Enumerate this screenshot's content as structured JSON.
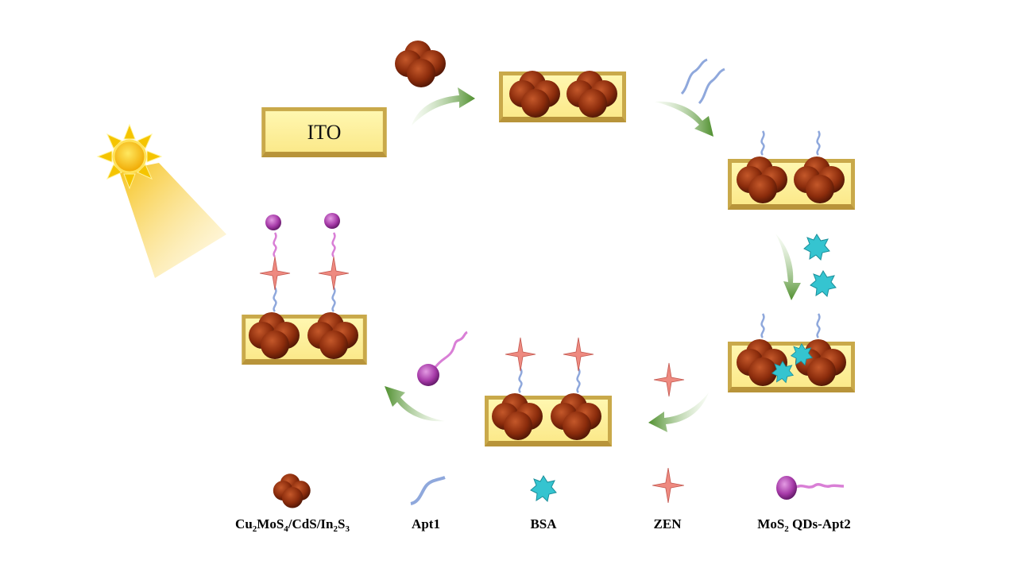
{
  "electrode_label": "ITO",
  "colors": {
    "electrode": "#fdf49a",
    "electrode_edge": "#c9a94a",
    "cluster": "#8b2c0c",
    "apt1": "#8fa8dc",
    "bsa": "#35c4d0",
    "zen": "#ee8a80",
    "mos2": "#a63aa8",
    "apt2": "#d97fd6",
    "arrow": "#5c9a3a",
    "sun": "#f5c400"
  },
  "icons": [
    "sun-icon",
    "light-beam",
    "cluster-icon",
    "apt1-strand-icon",
    "bsa-star-icon",
    "zen-star-icon",
    "mos2-qd-icon",
    "arrow-icon"
  ],
  "legend": [
    {
      "name": "cluster",
      "parts": [
        "Cu",
        "2",
        "MoS",
        "4",
        "/CdS/In",
        "2",
        "S",
        "3"
      ]
    },
    {
      "name": "apt1",
      "parts": [
        "Apt1"
      ]
    },
    {
      "name": "bsa",
      "parts": [
        "BSA"
      ]
    },
    {
      "name": "zen",
      "parts": [
        "ZEN"
      ]
    },
    {
      "name": "mos2",
      "parts": [
        "MoS",
        "2",
        " QDs-Apt2"
      ]
    }
  ]
}
